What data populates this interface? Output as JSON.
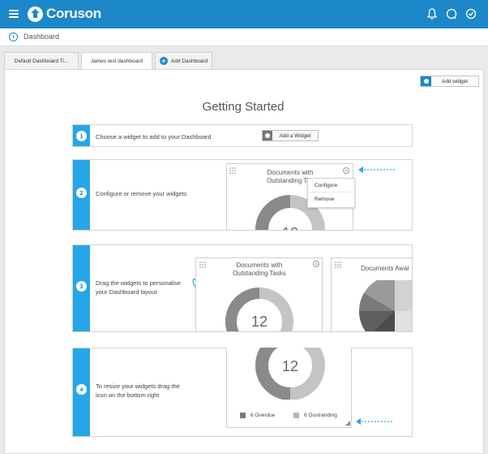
{
  "app": {
    "name": "Coruson"
  },
  "header": {
    "icons": [
      "bell-icon",
      "chat-icon",
      "check-circle-icon"
    ]
  },
  "breadcrumb": {
    "label": "Dashboard"
  },
  "tabs": [
    {
      "label": "Default Dashboard Ti...",
      "active": false
    },
    {
      "label": "James test dashboard",
      "active": true
    },
    {
      "label": "Add Dashboard",
      "active": false
    }
  ],
  "toolbar": {
    "add_widget_label": "Add widget"
  },
  "main": {
    "title": "Getting Started",
    "steps": [
      {
        "number": "1",
        "text": "Choose a widget to add to your Dashboard",
        "button_label": "Add a Widget"
      },
      {
        "number": "2",
        "text": "Configure or remove your widgets"
      },
      {
        "number": "3",
        "text_line1": "Drag the widgets to personalise",
        "text_line2": "your Dashboard layout"
      },
      {
        "number": "4",
        "text_line1": "To resize your widgets drag the",
        "text_line2": "icon on the bottom right"
      }
    ]
  },
  "widgets": {
    "documents_title_line1": "Documents with",
    "documents_title_line2": "Outstanding Tasks",
    "documents_title_truncated": "Outstanding Tas",
    "documents_awaiting_title": "Documents Awai",
    "count": "12",
    "menu": {
      "configure": "Configure",
      "remove": "Remove"
    },
    "legend": [
      {
        "label": "6 Overdue",
        "color": "#7a7a7a"
      },
      {
        "label": "6 Oustranding",
        "color": "#b5b5b5"
      }
    ]
  },
  "chart_data": {
    "type": "pie",
    "title": "Documents with Outstanding Tasks",
    "series": [
      {
        "name": "Overdue",
        "value": 6
      },
      {
        "name": "Oustranding",
        "value": 6
      }
    ],
    "total": 12
  },
  "colors": {
    "brand": "#1c87c9",
    "step_bar": "#25a6e6",
    "ring_dark": "#8a8a8a",
    "ring_light": "#c4c4c4"
  }
}
